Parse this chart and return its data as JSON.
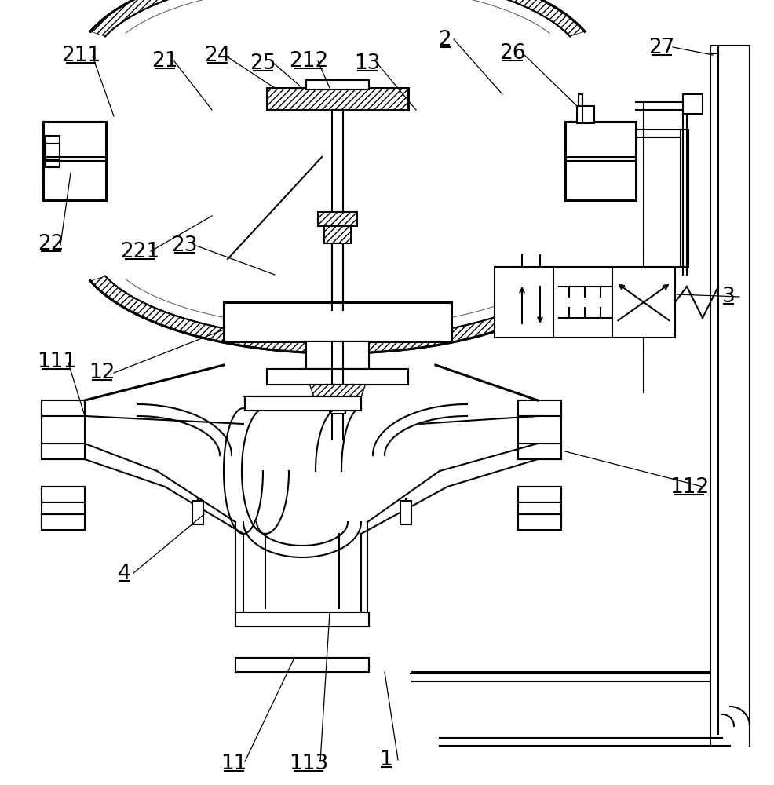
{
  "bg_color": "#ffffff",
  "lc": "#000000",
  "lw": 1.5,
  "tlw": 2.2
}
